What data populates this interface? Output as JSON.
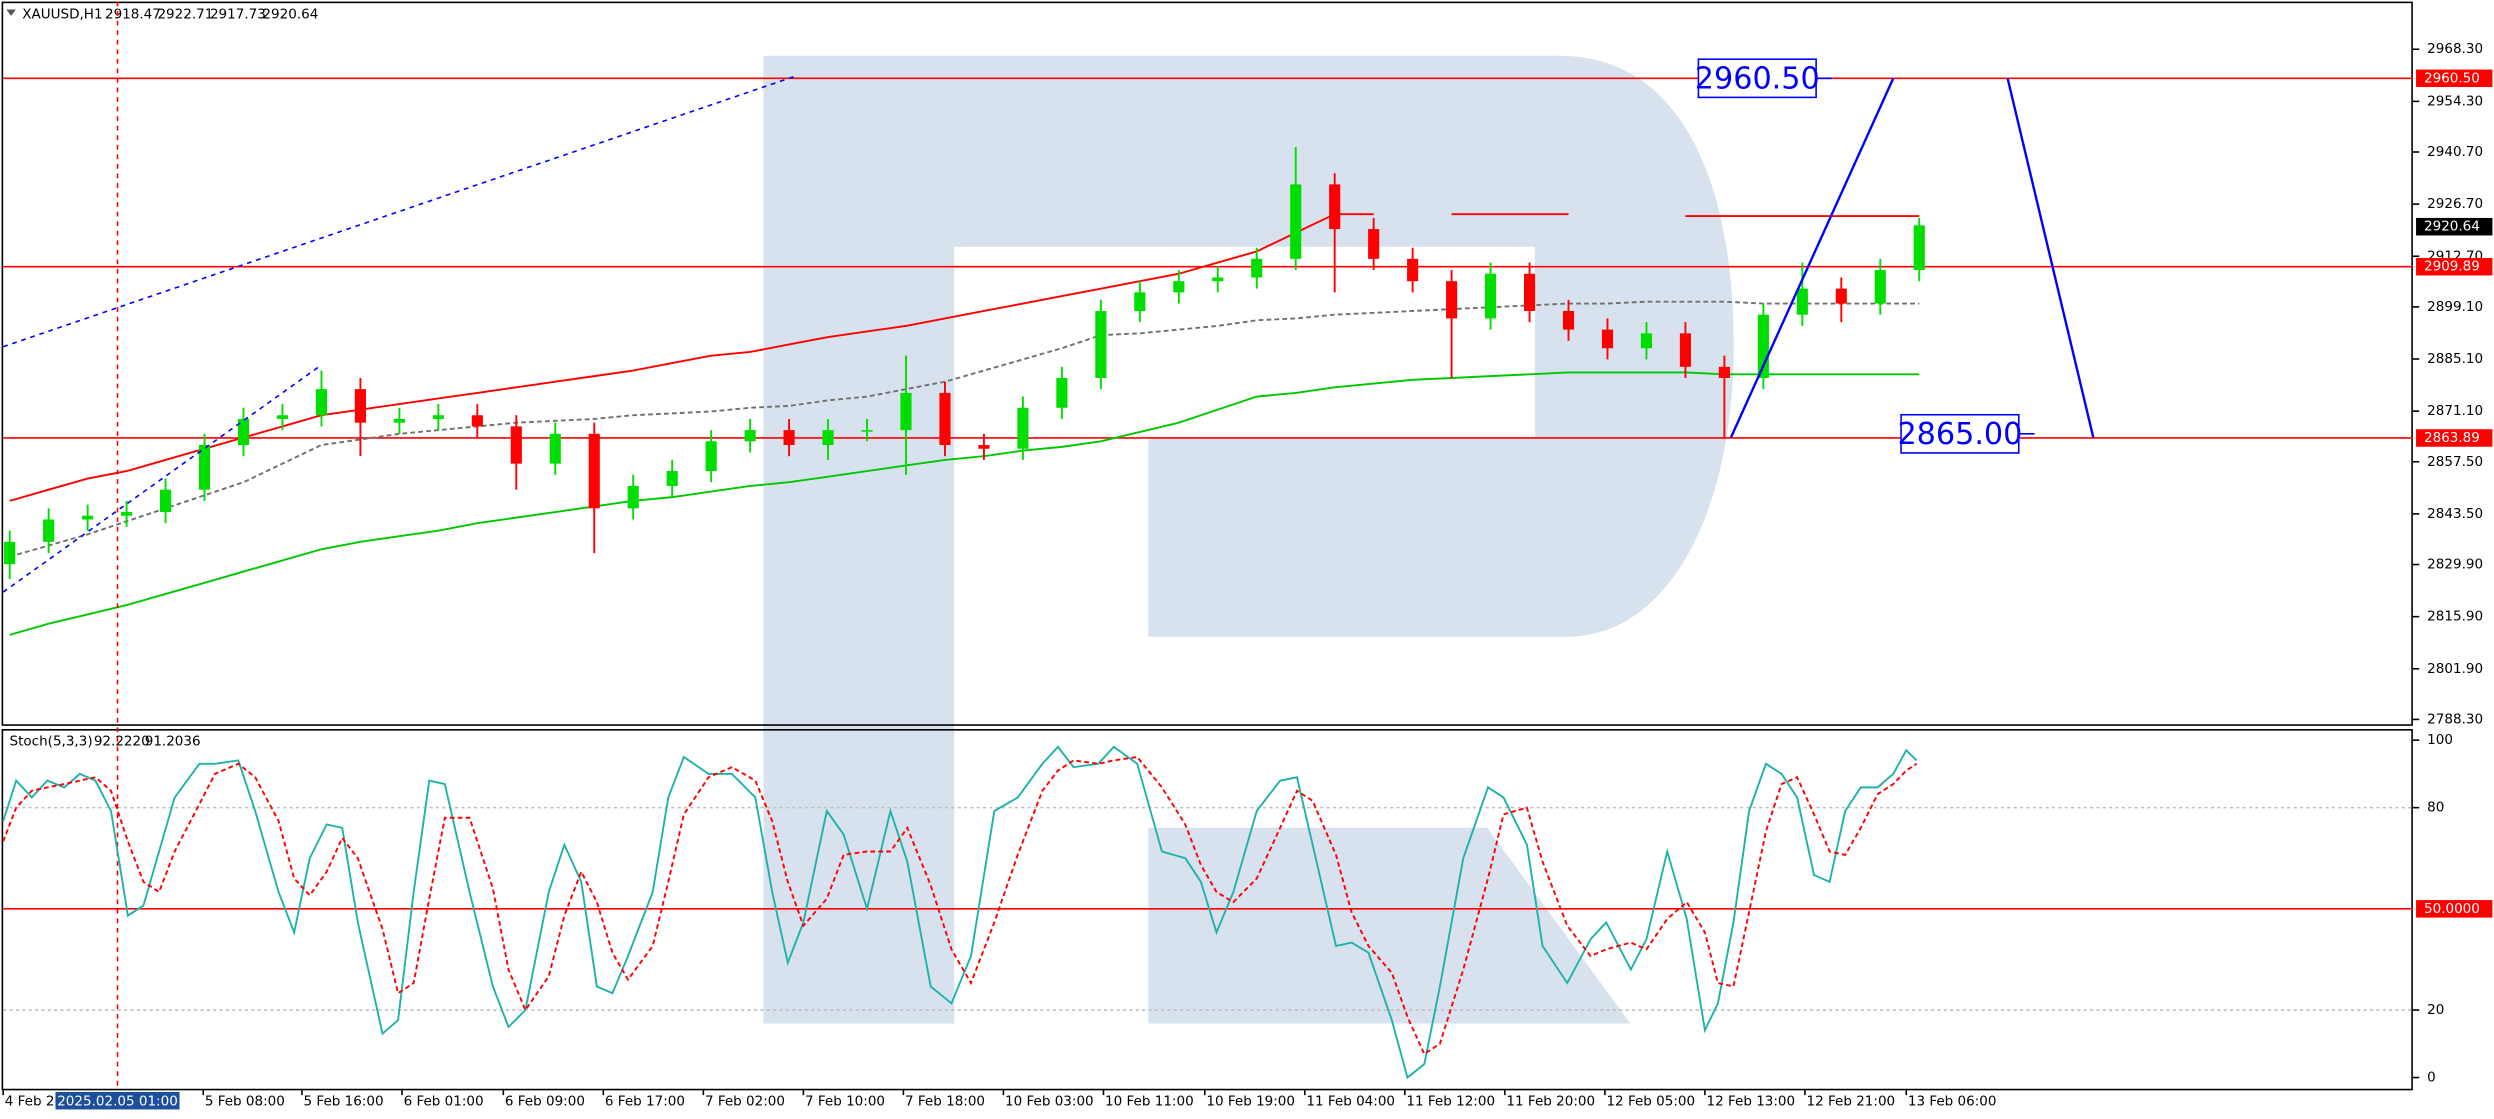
{
  "chart_data": [
    {
      "type": "candlestick",
      "title": "XAUUSD,H1",
      "ohlc_header": [
        2918.47,
        2922.71,
        2917.73,
        2920.64
      ],
      "up_color": "#00dd00",
      "down_color": "#ff0000",
      "xlim": [
        -0.5,
        185
      ],
      "ylim": [
        2787,
        2981.1
      ],
      "yticks": [
        {
          "value": 2968.3,
          "label": "2968.30"
        },
        {
          "value": 2954.3,
          "label": "2954.30"
        },
        {
          "value": 2940.7,
          "label": "2940.70"
        },
        {
          "value": 2926.7,
          "label": "2926.70"
        },
        {
          "value": 2912.7,
          "label": "2912.70"
        },
        {
          "value": 2899.1,
          "label": "2899.10"
        },
        {
          "value": 2885.1,
          "label": "2885.10"
        },
        {
          "value": 2871.1,
          "label": "2871.10"
        },
        {
          "value": 2857.5,
          "label": "2857.50"
        },
        {
          "value": 2843.5,
          "label": "2843.50"
        },
        {
          "value": 2829.9,
          "label": "2829.90"
        },
        {
          "value": 2815.9,
          "label": "2815.90"
        },
        {
          "value": 2801.9,
          "label": "2801.90"
        },
        {
          "value": 2788.3,
          "label": "2788.30"
        }
      ],
      "x": [
        0,
        3,
        6,
        9,
        12,
        15,
        18,
        21,
        24,
        27,
        30,
        33,
        36,
        39,
        42,
        45,
        48,
        51,
        54,
        57,
        60,
        63,
        66,
        69,
        72,
        75,
        78,
        81,
        84,
        87,
        90,
        93,
        96,
        99,
        102,
        105,
        108,
        111,
        114,
        117,
        120,
        123,
        126,
        129,
        132,
        135,
        138,
        141,
        144,
        147
      ],
      "open": [
        2830,
        2836,
        2842,
        2843,
        2844,
        2850,
        2862,
        2869,
        2870,
        2877,
        2868,
        2869,
        2870,
        2867,
        2857,
        2865,
        2845,
        2851,
        2855,
        2863,
        2866,
        2862,
        2866,
        2866,
        2876,
        2862,
        2861,
        2872,
        2880,
        2898,
        2903,
        2906,
        2907,
        2912,
        2932,
        2920,
        2912,
        2906,
        2896,
        2908,
        2898,
        2893,
        2888,
        2892,
        2883,
        2880,
        2897,
        2904,
        2900,
        2909
      ],
      "high": [
        2839,
        2845,
        2846,
        2847,
        2853,
        2865,
        2872,
        2873,
        2882,
        2880,
        2872,
        2873,
        2873,
        2870,
        2868,
        2868,
        2854,
        2858,
        2866,
        2869,
        2869,
        2869,
        2869,
        2886,
        2879,
        2865,
        2875,
        2883,
        2901,
        2906,
        2909,
        2910,
        2915,
        2942,
        2935,
        2923,
        2915,
        2909,
        2911,
        2911,
        2901,
        2896,
        2895,
        2895,
        2886,
        2900,
        2911,
        2907,
        2912,
        2923
      ],
      "low": [
        2826,
        2833,
        2839,
        2840,
        2841,
        2847,
        2859,
        2866,
        2867,
        2859,
        2865,
        2866,
        2864,
        2850,
        2854,
        2833,
        2842,
        2848,
        2852,
        2860,
        2859,
        2858,
        2863,
        2854,
        2859,
        2858,
        2858,
        2869,
        2877,
        2895,
        2900,
        2903,
        2904,
        2909,
        2903,
        2909,
        2903,
        2880,
        2893,
        2895,
        2890,
        2885,
        2885,
        2880,
        2864,
        2877,
        2894,
        2895,
        2897,
        2906
      ],
      "close": [
        2836,
        2842,
        2843,
        2844,
        2850,
        2862,
        2869,
        2870,
        2877,
        2868,
        2869,
        2870,
        2867,
        2857,
        2865,
        2845,
        2851,
        2855,
        2863,
        2866,
        2862,
        2866,
        2866,
        2876,
        2862,
        2861,
        2872,
        2880,
        2898,
        2903,
        2906,
        2907,
        2912,
        2932,
        2920,
        2912,
        2906,
        2896,
        2908,
        2898,
        2893,
        2888,
        2892,
        2883,
        2880,
        2897,
        2904,
        2900,
        2909,
        2921
      ],
      "lines": [
        {
          "color": "#ff0000",
          "dash": "none",
          "values": [
            2847,
            2850,
            2853,
            2855,
            2858,
            2861,
            2864,
            2867,
            2870,
            2871.5,
            2873,
            2874.5,
            2876,
            2877.5,
            2879,
            2880.5,
            2882,
            2884,
            2886,
            2887,
            2889,
            2891,
            2892.5,
            2894,
            2896,
            2898,
            2900,
            2902,
            2904,
            2906,
            2908,
            2911,
            2914,
            2919,
            2924,
            2924,
            null,
            2924,
            2924,
            2924,
            2924,
            null,
            null,
            2923.5,
            2923.5,
            2923.5,
            2923.5,
            2923.5,
            2923.5,
            2923.5
          ]
        },
        {
          "color": "#707070",
          "dash": "3,2",
          "values": [
            2832,
            2835,
            2838,
            2841.5,
            2845,
            2848.5,
            2852,
            2857,
            2862,
            2863.5,
            2865,
            2866,
            2867,
            2868,
            2868.5,
            2869,
            2870,
            2870.5,
            2871,
            2872,
            2872.5,
            2874,
            2875,
            2877,
            2879,
            2882,
            2885,
            2888,
            2891.5,
            2892,
            2893,
            2894,
            2895.5,
            2896,
            2897,
            2897.5,
            2898,
            2898.5,
            2899,
            2899.5,
            2900,
            2900,
            2900.5,
            2900.5,
            2900.5,
            2900,
            2900,
            2900,
            2900,
            2900
          ]
        },
        {
          "color": "#00c800",
          "dash": "none",
          "values": [
            2811,
            2814,
            2816.5,
            2819,
            2822,
            2825,
            2828,
            2831,
            2834,
            2836,
            2837.5,
            2839,
            2841,
            2842.5,
            2844,
            2845.5,
            2847,
            2848,
            2849.5,
            2851,
            2852,
            2853.5,
            2855,
            2856.5,
            2858,
            2859,
            2860.5,
            2861.5,
            2863,
            2865.5,
            2868,
            2871.5,
            2875,
            2876,
            2877.5,
            2878.5,
            2879.5,
            2880,
            2880.5,
            2881,
            2881.5,
            2881.5,
            2881.5,
            2881.5,
            2881,
            2881,
            2881,
            2881,
            2881,
            2881
          ]
        }
      ],
      "trend_lines": [
        {
          "color": "#0000ff",
          "dash": "3,3",
          "x": [
            -0.5,
            60.5
          ],
          "values": [
            2888.4,
            2961.1
          ]
        },
        {
          "color": "#0000ff",
          "dash": "3,3",
          "x": [
            -0.5,
            23.8
          ],
          "values": [
            2822.5,
            2883
          ]
        },
        {
          "color": "#0000ff",
          "dash": "none",
          "x": [
            132.5,
            145
          ],
          "values": [
            2864,
            2960.5
          ]
        },
        {
          "color": "#0000ff",
          "dash": "none",
          "x": [
            153.8,
            160.4
          ],
          "values": [
            2960.5,
            2864
          ]
        }
      ],
      "levels": [
        {
          "value": 2960.5,
          "label": "2960.50"
        },
        {
          "value": 2909.89,
          "label": "2909.89"
        },
        {
          "value": 2863.89,
          "label": "2863.89"
        }
      ],
      "level_color": "#ff0000",
      "current_price": {
        "value": 2920.64,
        "label": "2920.64"
      },
      "annotations": [
        {
          "x": 130.0,
          "value": 2960.5,
          "label": "2960.50"
        },
        {
          "x": 145.6,
          "value": 2865,
          "label": "2865.00"
        }
      ]
    },
    {
      "type": "line",
      "title": "Stoch(5,3,3)",
      "header_values": [
        {
          "value": 92.222,
          "label": "92.2220"
        },
        {
          "value": 91.2036,
          "label": "91.2036"
        }
      ],
      "xlim": [
        -0.5,
        185
      ],
      "ylim": [
        -3.8,
        103.3
      ],
      "yticks": [
        100,
        80,
        20,
        0
      ],
      "dotted_levels": [
        80,
        20
      ],
      "level_line": {
        "value": 50,
        "label": "50.0000",
        "color": "#ff0000"
      },
      "xticks": [
        {
          "value": -0.5,
          "label": "4 Feb 2"
        },
        {
          "value": 14.9,
          "label": "5 Feb 08:00"
        },
        {
          "value": 22.5,
          "label": "5 Feb 16:00"
        },
        {
          "value": 30.2,
          "label": "6 Feb 01:00"
        },
        {
          "value": 38.0,
          "label": "6 Feb 09:00"
        },
        {
          "value": 45.7,
          "label": "6 Feb 17:00"
        },
        {
          "value": 53.4,
          "label": "7 Feb 02:00"
        },
        {
          "value": 61.1,
          "label": "7 Feb 10:00"
        },
        {
          "value": 68.8,
          "label": "7 Feb 18:00"
        },
        {
          "value": 76.5,
          "label": "10 Feb 03:00"
        },
        {
          "value": 84.2,
          "label": "10 Feb 11:00"
        },
        {
          "value": 92.0,
          "label": "10 Feb 19:00"
        },
        {
          "value": 99.7,
          "label": "11 Feb 04:00"
        },
        {
          "value": 107.4,
          "label": "11 Feb 12:00"
        },
        {
          "value": 115.1,
          "label": "11 Feb 20:00"
        },
        {
          "value": 122.8,
          "label": "12 Feb 05:00"
        },
        {
          "value": 130.5,
          "label": "12 Feb 13:00"
        },
        {
          "value": 138.2,
          "label": "12 Feb 21:00"
        },
        {
          "value": 146.0,
          "label": "13 Feb 06:00"
        }
      ],
      "crosshair": {
        "x": 8.3,
        "label": "2025.02.05 01:00"
      },
      "x": [
        -0.5,
        0.5,
        1.7,
        2.9,
        4.2,
        5.4,
        6.6,
        7.8,
        9.1,
        10.3,
        11.5,
        12.7,
        14.6,
        15.8,
        17.6,
        18.9,
        20.7,
        21.9,
        23.1,
        24.4,
        25.6,
        26.8,
        28.7,
        29.9,
        31.1,
        32.3,
        33.5,
        35.4,
        37.2,
        38.4,
        39.7,
        41.5,
        42.7,
        44.0,
        45.2,
        46.4,
        47.6,
        49.5,
        50.7,
        51.9,
        53.8,
        55.6,
        57.4,
        58.7,
        59.9,
        61.1,
        62.9,
        64.2,
        66.0,
        67.8,
        69.1,
        70.9,
        72.5,
        74.0,
        75.8,
        77.6,
        79.5,
        80.7,
        81.9,
        83.8,
        85.0,
        86.8,
        88.7,
        90.5,
        91.7,
        92.9,
        94.2,
        96.0,
        97.8,
        99.1,
        100.3,
        102.1,
        103.3,
        104.6,
        106.4,
        107.6,
        108.9,
        110.1,
        111.9,
        113.8,
        115.0,
        116.8,
        118.0,
        119.9,
        121.7,
        122.9,
        124.8,
        126.0,
        127.6,
        129.1,
        130.5,
        131.5,
        132.7,
        133.9,
        135.2,
        136.4,
        137.6,
        138.9,
        140.1,
        141.3,
        142.5,
        143.8,
        145.0,
        146.0,
        146.8
      ],
      "series": [
        {
          "color": "#20b2aa",
          "dash": "none",
          "values": [
            76,
            88,
            83,
            88,
            86,
            90,
            88,
            79,
            48,
            51,
            67,
            83,
            93,
            93,
            94,
            79,
            55,
            43,
            65,
            75,
            74,
            46,
            13,
            17,
            55,
            88,
            87,
            55,
            27,
            15,
            20,
            55,
            69,
            58,
            27,
            25,
            36,
            55,
            83,
            95,
            90,
            90,
            83,
            55,
            34,
            46,
            79,
            72,
            50,
            79,
            64,
            27,
            22,
            36,
            79,
            83,
            93,
            98,
            92,
            93,
            98,
            93,
            67,
            65,
            58,
            43,
            55,
            79,
            88,
            89,
            69,
            39,
            40,
            37,
            17,
            0,
            4,
            27,
            65,
            86,
            83,
            69,
            39,
            28,
            41,
            46,
            32,
            41,
            67,
            47,
            14,
            22,
            46,
            79,
            93,
            90,
            83,
            60,
            58,
            79,
            86,
            86,
            90,
            97,
            94
          ]
        },
        {
          "color": "#ff0000",
          "dash": "3,2",
          "values": [
            70,
            80,
            85,
            86,
            87,
            88,
            89,
            85,
            70,
            58,
            55,
            67,
            81,
            90,
            93,
            89,
            76,
            59,
            54,
            61,
            71,
            65,
            44,
            25,
            28,
            53,
            77,
            77,
            56,
            32,
            20,
            30,
            48,
            61,
            52,
            37,
            29,
            39,
            58,
            78,
            89,
            92,
            88,
            76,
            58,
            45,
            53,
            66,
            67,
            67,
            74,
            57,
            38,
            28,
            46,
            66,
            85,
            91,
            94,
            93,
            94,
            95,
            86,
            75,
            63,
            55,
            52,
            59,
            74,
            85,
            82,
            66,
            49,
            39,
            31,
            18,
            7,
            10,
            32,
            59,
            78,
            80,
            64,
            45,
            36,
            38,
            40,
            38,
            47,
            52,
            43,
            28,
            27,
            49,
            73,
            87,
            89,
            78,
            67,
            66,
            74,
            84,
            87,
            91,
            93
          ]
        }
      ]
    }
  ]
}
